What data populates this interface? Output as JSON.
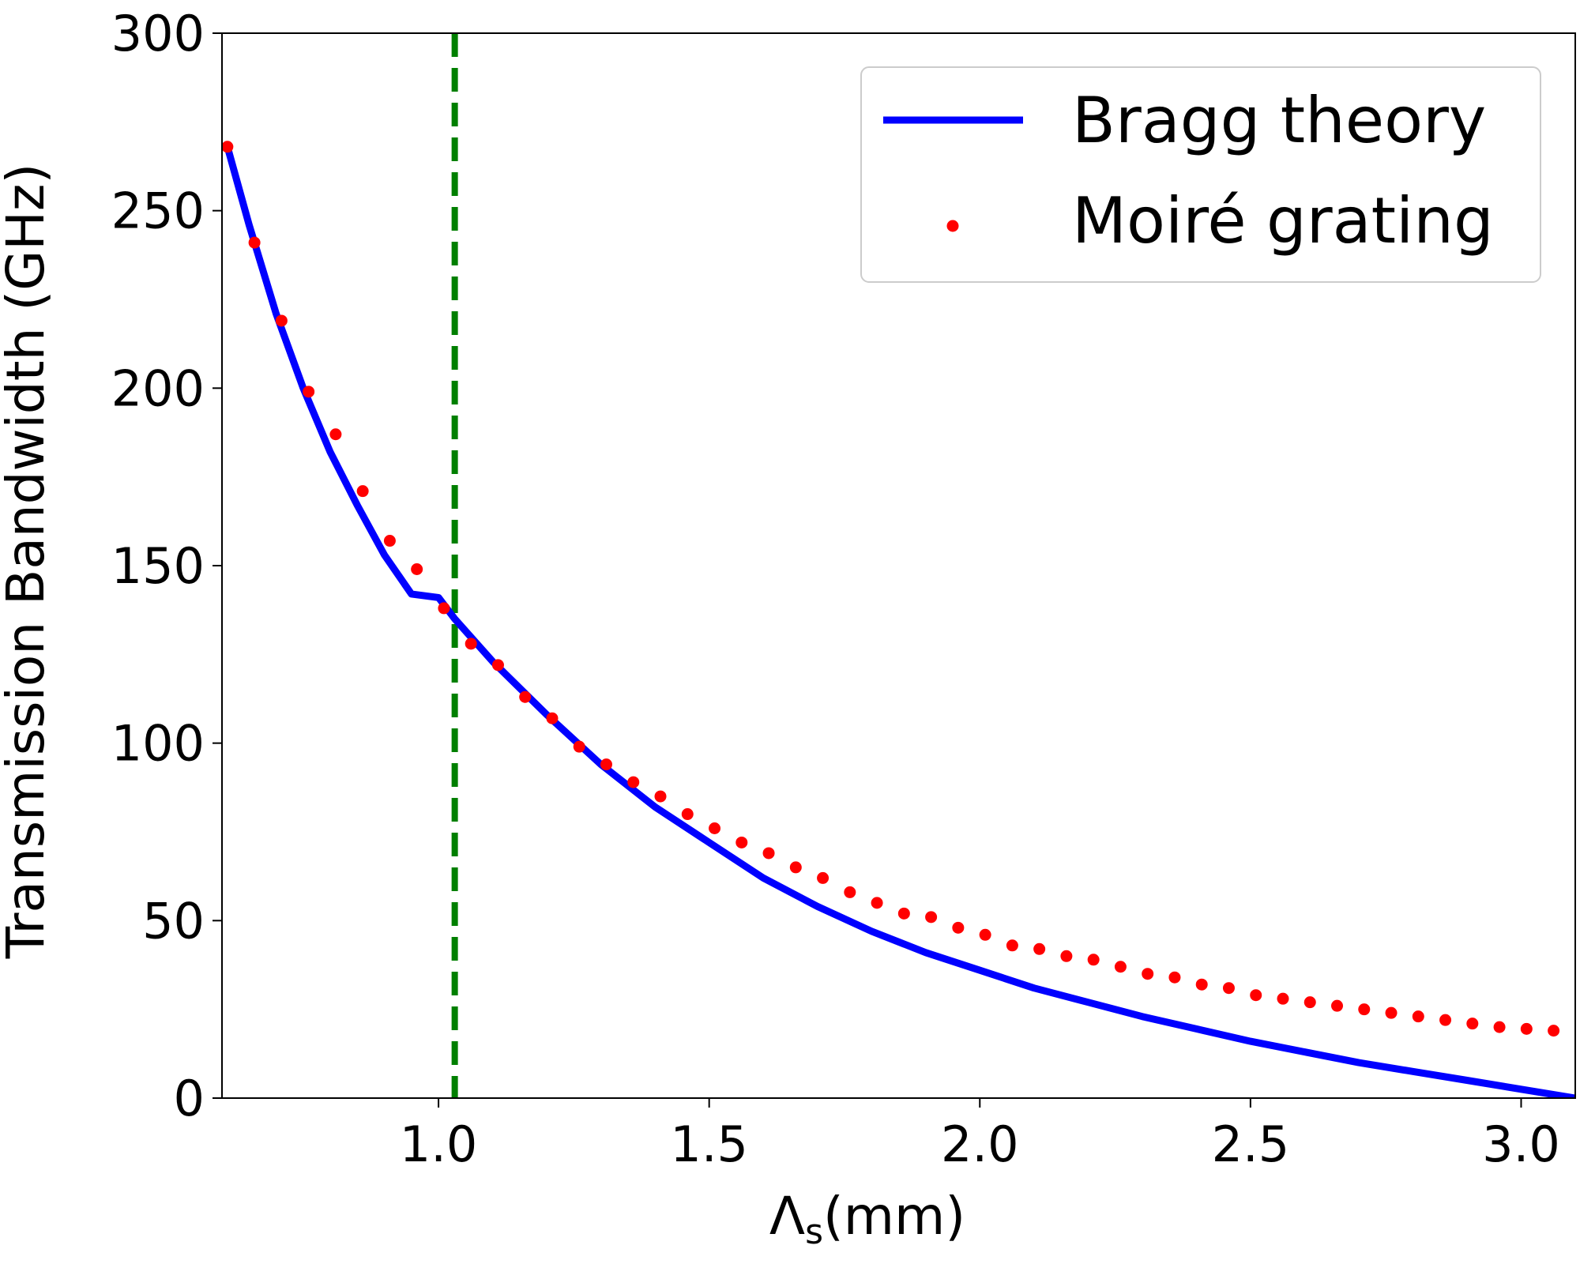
{
  "chart_data": {
    "type": "line",
    "title": "",
    "xlabel": "Λs(mm)",
    "xlabel_main": "Λ",
    "xlabel_sub": "s",
    "xlabel_unit": "(mm)",
    "ylabel": "Transmission Bandwidth (GHz)",
    "xlim": [
      0.6,
      3.1
    ],
    "ylim": [
      0,
      300
    ],
    "xticks": [
      1.0,
      1.5,
      2.0,
      2.5,
      3.0
    ],
    "xtick_labels": [
      "1.0",
      "1.5",
      "2.0",
      "2.5",
      "3.0"
    ],
    "yticks": [
      0,
      50,
      100,
      150,
      200,
      250,
      300
    ],
    "ytick_labels": [
      "0",
      "50",
      "100",
      "150",
      "200",
      "250",
      "300"
    ],
    "grid": false,
    "legend_position": "top-right",
    "vline": {
      "x": 1.03,
      "style": "dashed",
      "color": "#007f00"
    },
    "series": [
      {
        "name": "Bragg theory",
        "kind": "line",
        "color": "#0000ff",
        "x": [
          0.61,
          0.65,
          0.7,
          0.75,
          0.8,
          0.85,
          0.9,
          0.95,
          1.0,
          1.03,
          1.1,
          1.2,
          1.3,
          1.4,
          1.5,
          1.6,
          1.7,
          1.8,
          1.9,
          2.0,
          2.1,
          2.2,
          2.3,
          2.4,
          2.5,
          2.6,
          2.7,
          2.8,
          2.9,
          3.0,
          3.1
        ],
        "y": [
          268,
          246,
          221,
          200,
          182,
          167,
          153,
          142,
          141,
          135,
          123,
          108,
          94,
          82,
          72,
          62,
          54,
          47,
          41,
          36,
          31,
          27,
          23,
          19.5,
          16,
          13,
          10,
          7.5,
          5,
          2.5,
          0
        ]
      },
      {
        "name": "Moiré grating",
        "kind": "scatter",
        "color": "#ff0000",
        "x": [
          0.61,
          0.66,
          0.71,
          0.76,
          0.81,
          0.86,
          0.91,
          0.96,
          1.01,
          1.06,
          1.11,
          1.16,
          1.21,
          1.26,
          1.31,
          1.36,
          1.41,
          1.46,
          1.51,
          1.56,
          1.61,
          1.66,
          1.71,
          1.76,
          1.81,
          1.86,
          1.91,
          1.96,
          2.01,
          2.06,
          2.11,
          2.16,
          2.21,
          2.26,
          2.31,
          2.36,
          2.41,
          2.46,
          2.51,
          2.56,
          2.61,
          2.66,
          2.71,
          2.76,
          2.81,
          2.86,
          2.91,
          2.96,
          3.01,
          3.06,
          3.11
        ],
        "y": [
          268,
          241,
          219,
          199,
          187,
          171,
          157,
          149,
          138,
          128,
          122,
          113,
          107,
          99,
          94,
          89,
          85,
          80,
          76,
          72,
          69,
          65,
          62,
          58,
          55,
          52,
          51,
          48,
          46,
          43,
          42,
          40,
          39,
          37,
          35,
          34,
          32,
          31,
          29,
          28,
          27,
          26,
          25,
          24,
          23,
          22,
          21,
          20,
          19.5,
          19,
          19
        ]
      }
    ]
  }
}
